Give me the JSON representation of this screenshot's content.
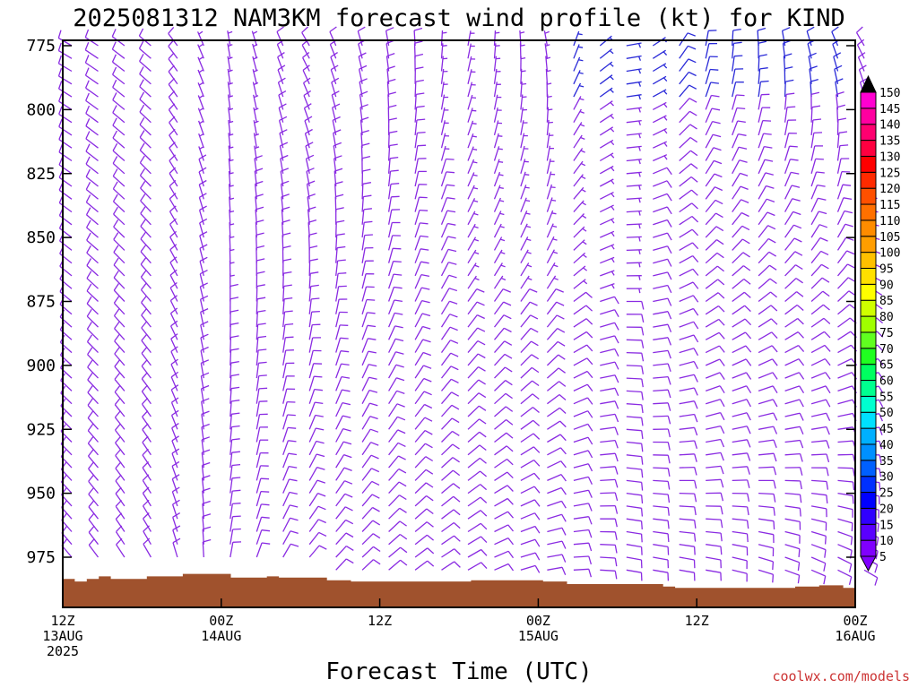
{
  "chart_data": {
    "type": "wind-barb-time-height",
    "title": "2025081312 NAM3KM forecast wind profile (kt) for KIND",
    "xlabel": "Forecast Time (UTC)",
    "ylabel": "",
    "y_axis": {
      "unit": "hPa",
      "range": [
        775,
        985
      ],
      "ticks": [
        775,
        800,
        825,
        850,
        875,
        900,
        925,
        950,
        975
      ]
    },
    "x_axis": {
      "range_hours": [
        0,
        60
      ],
      "ticks": [
        {
          "hour": 0,
          "line1": "12Z",
          "line2": "13AUG",
          "line3": "2025"
        },
        {
          "hour": 12,
          "line1": "00Z",
          "line2": "14AUG",
          "line3": ""
        },
        {
          "hour": 24,
          "line1": "12Z",
          "line2": "",
          "line3": ""
        },
        {
          "hour": 36,
          "line1": "00Z",
          "line2": "15AUG",
          "line3": ""
        },
        {
          "hour": 48,
          "line1": "12Z",
          "line2": "",
          "line3": ""
        },
        {
          "hour": 60,
          "line1": "00Z",
          "line2": "16AUG",
          "line3": ""
        }
      ]
    },
    "colorbar": {
      "labels": [
        "5",
        "10",
        "15",
        "20",
        "25",
        "30",
        "35",
        "40",
        "45",
        "50",
        "55",
        "60",
        "65",
        "70",
        "75",
        "80",
        "85",
        "90",
        "95",
        "100",
        "105",
        "110",
        "115",
        "120",
        "125",
        "130",
        "135",
        "140",
        "145",
        "150"
      ],
      "colors": [
        "#8000ff",
        "#5a00ff",
        "#3000ff",
        "#0000ff",
        "#0030ff",
        "#0060ff",
        "#0090ff",
        "#00b0ff",
        "#00e0ff",
        "#00ffd0",
        "#00ff90",
        "#00ff60",
        "#20ff20",
        "#60ff20",
        "#a0ff00",
        "#d0ff00",
        "#ffff00",
        "#ffe000",
        "#ffc000",
        "#ff9e00",
        "#ff8c00",
        "#ff7000",
        "#ff5000",
        "#ff2a00",
        "#ff0000",
        "#ff0040",
        "#ff0070",
        "#ff00a0",
        "#ff00d0",
        "#ff20ff"
      ]
    },
    "surface_pressure_hpa": [
      983.5,
      984.5,
      983.5,
      982.5,
      983.5,
      983.5,
      983.5,
      982.5,
      982.5,
      982.5,
      981.5,
      981.5,
      981.5,
      981.5,
      983,
      983,
      983,
      982.5,
      983,
      983,
      983,
      983,
      984,
      984,
      984.5,
      984.5,
      984.5,
      984.5,
      984.5,
      984.5,
      984.5,
      984.5,
      984.5,
      984.5,
      984,
      984,
      984,
      984,
      984,
      984,
      984.5,
      984.5,
      985.5,
      985.5,
      985.5,
      985.5,
      985.5,
      985.5,
      985.5,
      985.5,
      986.5,
      987,
      987,
      987,
      987,
      987,
      987,
      987,
      987,
      987,
      987,
      986.5,
      986.5,
      986,
      986,
      987
    ],
    "barb_levels": [
      775,
      780,
      785,
      790,
      795,
      800,
      805,
      810,
      815,
      820,
      825,
      830,
      835,
      840,
      845,
      850,
      855,
      860,
      865,
      870,
      875,
      880,
      885,
      890,
      895,
      900,
      905,
      910,
      915,
      920,
      925,
      930,
      935,
      940,
      945,
      950,
      955,
      960,
      965,
      970,
      975,
      980
    ],
    "barb_times": [
      0,
      1,
      2,
      3,
      4,
      5,
      6,
      7,
      8,
      9,
      10,
      11,
      12,
      13,
      14,
      15,
      16,
      17,
      18,
      19,
      20,
      21,
      22,
      23,
      24,
      25,
      26,
      27,
      28,
      29,
      30,
      31,
      32,
      33,
      34,
      35,
      36,
      37,
      38,
      39,
      40,
      41,
      42,
      43,
      44,
      45,
      46,
      47,
      48,
      49,
      50,
      51,
      52,
      53,
      54,
      55,
      56,
      57,
      58,
      59,
      60
    ],
    "wind_keyframes": [
      {
        "hour": 0,
        "upper": {
          "dir": 300,
          "spd": 10
        },
        "lower": {
          "dir": 320,
          "spd": 10
        }
      },
      {
        "hour": 6,
        "upper": {
          "dir": 310,
          "spd": 10
        },
        "lower": {
          "dir": 330,
          "spd": 10
        }
      },
      {
        "hour": 12,
        "upper": {
          "dir": 350,
          "spd": 5
        },
        "lower": {
          "dir": 10,
          "spd": 10
        }
      },
      {
        "hour": 18,
        "upper": {
          "dir": 330,
          "spd": 10
        },
        "lower": {
          "dir": 40,
          "spd": 10
        }
      },
      {
        "hour": 24,
        "upper": {
          "dir": 350,
          "spd": 10
        },
        "lower": {
          "dir": 50,
          "spd": 10
        }
      },
      {
        "hour": 30,
        "upper": {
          "dir": 10,
          "spd": 5
        },
        "lower": {
          "dir": 60,
          "spd": 10
        }
      },
      {
        "hour": 36,
        "upper": {
          "dir": 350,
          "spd": 5
        },
        "lower": {
          "dir": 80,
          "spd": 10
        }
      },
      {
        "hour": 42,
        "upper": {
          "dir": 80,
          "spd": 5
        },
        "lower": {
          "dir": 100,
          "spd": 10
        }
      },
      {
        "hour": 48,
        "upper": {
          "dir": 10,
          "spd": 10
        },
        "lower": {
          "dir": 100,
          "spd": 10
        }
      },
      {
        "hour": 54,
        "upper": {
          "dir": 350,
          "spd": 10
        },
        "lower": {
          "dir": 110,
          "spd": 10
        }
      },
      {
        "hour": 60,
        "upper": {
          "dir": 330,
          "spd": 10
        },
        "lower": {
          "dir": 120,
          "spd": 10
        }
      }
    ],
    "barb_color": "#8a2be2",
    "barb_color_upper_early": "#2b2bd8",
    "ground_color": "#a0522d",
    "credit": "coolwx.com/models"
  }
}
